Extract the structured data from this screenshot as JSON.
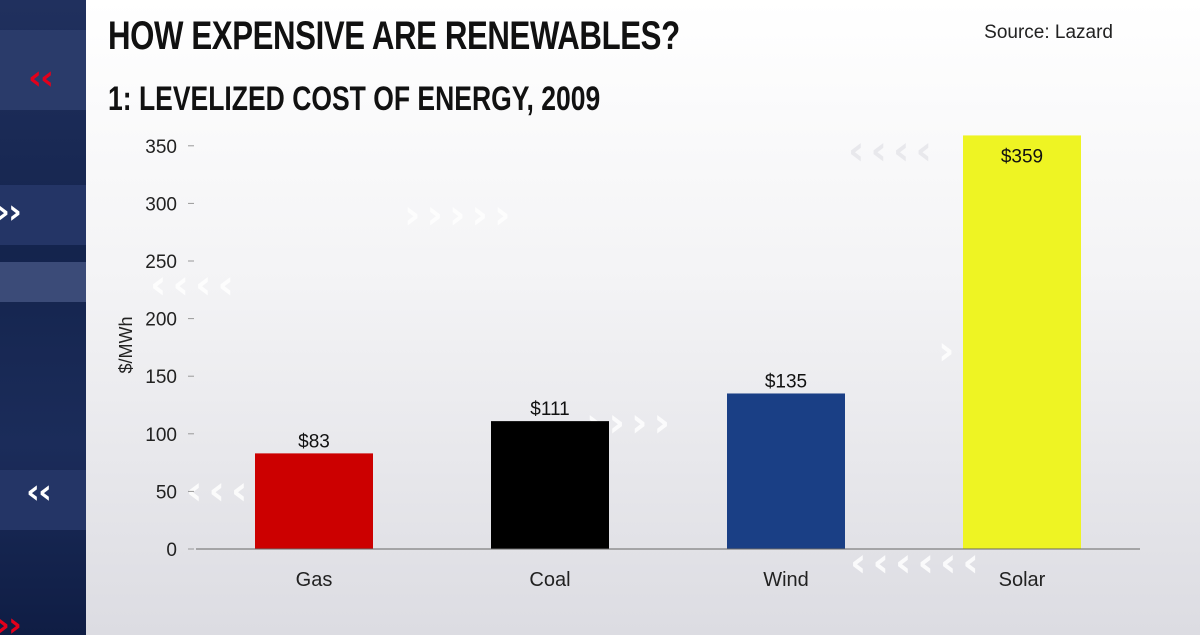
{
  "title": "HOW EXPENSIVE ARE RENEWABLES?",
  "subtitle": "1: LEVELIZED COST OF ENERGY, 2009",
  "source": "Source: Lazard",
  "colors": {
    "accent_red": "#d0021b",
    "navy": "#1a2a55"
  },
  "chart_data": {
    "type": "bar",
    "categories": [
      "Gas",
      "Coal",
      "Wind",
      "Solar"
    ],
    "values": [
      83,
      111,
      135,
      359
    ],
    "value_labels": [
      "$83",
      "$111",
      "$135",
      "$359"
    ],
    "bar_colors": [
      "#cc0000",
      "#000000",
      "#1a3f85",
      "#eef423"
    ],
    "ylabel": "$/MWh",
    "xlabel": "",
    "ylim": [
      0,
      359
    ],
    "yticks": [
      0,
      50,
      100,
      150,
      200,
      250,
      300,
      350
    ],
    "grid": false,
    "legend": "none"
  }
}
